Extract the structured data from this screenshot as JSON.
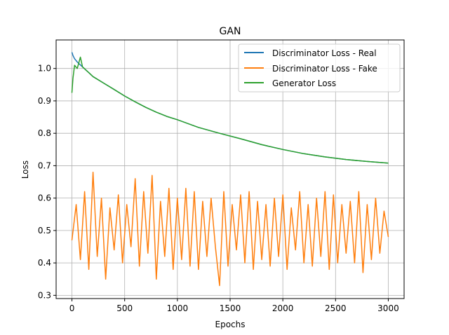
{
  "chart_data": {
    "type": "line",
    "title": "GAN",
    "xlabel": "Epochs",
    "ylabel": "Loss",
    "xlim": [
      -150,
      3150
    ],
    "ylim": [
      0.29,
      1.088
    ],
    "xticks": [
      0,
      500,
      1000,
      1500,
      2000,
      2500,
      3000
    ],
    "yticks": [
      0.3,
      0.4,
      0.5,
      0.6,
      0.7,
      0.8,
      0.9,
      1.0
    ],
    "xtick_labels": [
      "0",
      "500",
      "1000",
      "1500",
      "2000",
      "2500",
      "3000"
    ],
    "ytick_labels": [
      "0.3",
      "0.4",
      "0.5",
      "0.6",
      "0.7",
      "0.8",
      "0.9",
      "1.0"
    ],
    "grid": true,
    "legend_position": "top-right",
    "series": [
      {
        "name": "Discriminator Loss - Real",
        "color": "#1f77b4",
        "x": [
          0,
          10,
          25,
          50,
          100,
          150,
          200,
          300,
          400,
          500,
          600,
          700,
          800,
          900,
          1000,
          1200,
          1400,
          1600,
          1800,
          2000,
          2200,
          2400,
          2600,
          2800,
          3000
        ],
        "y": [
          1.05,
          1.04,
          1.03,
          1.02,
          1.005,
          0.99,
          0.975,
          0.955,
          0.935,
          0.915,
          0.897,
          0.88,
          0.865,
          0.852,
          0.842,
          0.818,
          0.8,
          0.783,
          0.765,
          0.75,
          0.737,
          0.727,
          0.719,
          0.713,
          0.708
        ]
      },
      {
        "name": "Discriminator Loss - Fake",
        "color": "#ff7f0e",
        "x": [
          0,
          40,
          80,
          120,
          160,
          200,
          240,
          280,
          320,
          360,
          400,
          440,
          480,
          520,
          560,
          600,
          640,
          680,
          720,
          760,
          800,
          840,
          880,
          920,
          960,
          1000,
          1040,
          1080,
          1120,
          1160,
          1200,
          1240,
          1280,
          1320,
          1360,
          1400,
          1440,
          1480,
          1520,
          1560,
          1600,
          1640,
          1680,
          1720,
          1760,
          1800,
          1840,
          1880,
          1920,
          1960,
          2000,
          2040,
          2080,
          2120,
          2160,
          2200,
          2240,
          2280,
          2320,
          2360,
          2400,
          2440,
          2480,
          2520,
          2560,
          2600,
          2640,
          2680,
          2720,
          2760,
          2800,
          2840,
          2880,
          2920,
          2960,
          3000
        ],
        "y": [
          0.47,
          0.58,
          0.41,
          0.62,
          0.38,
          0.68,
          0.42,
          0.6,
          0.35,
          0.57,
          0.44,
          0.61,
          0.4,
          0.58,
          0.45,
          0.66,
          0.39,
          0.62,
          0.43,
          0.67,
          0.35,
          0.59,
          0.42,
          0.63,
          0.38,
          0.6,
          0.41,
          0.63,
          0.39,
          0.62,
          0.38,
          0.59,
          0.42,
          0.6,
          0.45,
          0.33,
          0.62,
          0.39,
          0.58,
          0.44,
          0.61,
          0.4,
          0.62,
          0.38,
          0.59,
          0.41,
          0.58,
          0.39,
          0.6,
          0.42,
          0.61,
          0.38,
          0.57,
          0.44,
          0.62,
          0.4,
          0.58,
          0.39,
          0.6,
          0.42,
          0.62,
          0.38,
          0.61,
          0.4,
          0.58,
          0.43,
          0.59,
          0.4,
          0.62,
          0.37,
          0.58,
          0.41,
          0.6,
          0.43,
          0.56,
          0.48
        ]
      },
      {
        "name": "Generator Loss",
        "color": "#2ca02c",
        "x": [
          0,
          10,
          25,
          50,
          80,
          100,
          150,
          200,
          300,
          400,
          500,
          600,
          700,
          800,
          900,
          1000,
          1200,
          1400,
          1600,
          1800,
          2000,
          2200,
          2400,
          2600,
          2800,
          3000
        ],
        "y": [
          0.925,
          0.97,
          1.01,
          1.0,
          1.035,
          1.005,
          0.99,
          0.975,
          0.955,
          0.935,
          0.915,
          0.897,
          0.88,
          0.865,
          0.852,
          0.842,
          0.818,
          0.8,
          0.783,
          0.765,
          0.75,
          0.737,
          0.727,
          0.719,
          0.713,
          0.708
        ]
      }
    ]
  }
}
